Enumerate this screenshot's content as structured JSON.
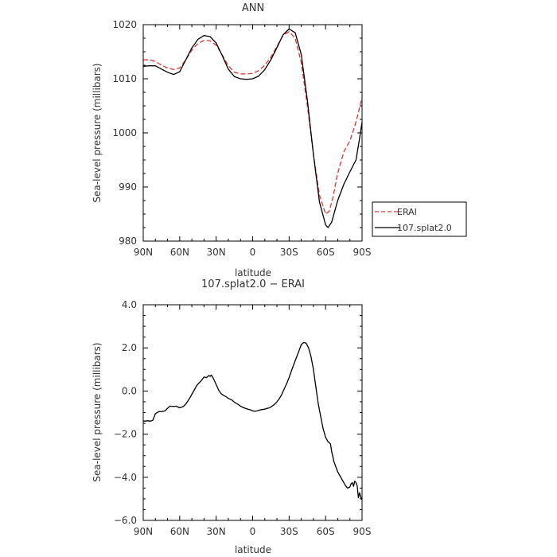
{
  "chart_data": [
    {
      "type": "line",
      "title": "ANN",
      "xlabel": "latitude",
      "ylabel": "Sea-level pressure (millibars)",
      "xlim": [
        90,
        -90
      ],
      "ylim": [
        980,
        1020
      ],
      "x_tick_values": [
        90,
        60,
        30,
        0,
        -30,
        -60,
        -90
      ],
      "x_tick_labels": [
        "90N",
        "60N",
        "30N",
        "0",
        "30S",
        "60S",
        "90S"
      ],
      "y_tick_values": [
        980,
        990,
        1000,
        1010,
        1020
      ],
      "y_tick_labels": [
        "980",
        "990",
        "1000",
        "1010",
        "1020"
      ],
      "legend_position": "right",
      "series": [
        {
          "name": "ERAI",
          "color": "#e8302c",
          "dash": "dashed",
          "x": [
            90,
            85,
            80,
            75,
            70,
            65,
            60,
            55,
            50,
            45,
            40,
            35,
            30,
            25,
            20,
            15,
            10,
            5,
            0,
            -5,
            -10,
            -15,
            -20,
            -25,
            -30,
            -35,
            -40,
            -45,
            -50,
            -55,
            -60,
            -63,
            -66,
            -70,
            -75,
            -80,
            -85,
            -90
          ],
          "y": [
            1013.5,
            1013.5,
            1013.2,
            1012.5,
            1012.0,
            1011.7,
            1012.0,
            1013.5,
            1015.3,
            1016.5,
            1017.1,
            1017.0,
            1016.2,
            1014.4,
            1012.4,
            1011.2,
            1010.9,
            1010.9,
            1011.0,
            1011.5,
            1012.5,
            1014.0,
            1016.0,
            1018.0,
            1018.7,
            1017.5,
            1013.0,
            1005.0,
            996.0,
            988.5,
            985.0,
            985.5,
            988.0,
            992.5,
            996.5,
            998.5,
            1002.0,
            1006.5
          ]
        },
        {
          "name": "107.splat2.0",
          "color": "#000000",
          "dash": "solid",
          "x": [
            90,
            85,
            80,
            75,
            70,
            65,
            60,
            55,
            50,
            45,
            40,
            35,
            30,
            25,
            20,
            15,
            10,
            5,
            0,
            -5,
            -10,
            -15,
            -20,
            -25,
            -30,
            -35,
            -40,
            -45,
            -50,
            -55,
            -60,
            -62,
            -65,
            -70,
            -75,
            -80,
            -85,
            -88,
            -90
          ],
          "y": [
            1012.3,
            1012.4,
            1012.4,
            1011.8,
            1011.2,
            1010.8,
            1011.3,
            1013.5,
            1015.7,
            1017.3,
            1018.0,
            1017.8,
            1016.6,
            1014.3,
            1011.8,
            1010.4,
            1010.0,
            1009.9,
            1010.0,
            1010.5,
            1011.7,
            1013.5,
            1015.8,
            1018.1,
            1019.2,
            1018.5,
            1014.5,
            1006.0,
            996.0,
            987.2,
            983.0,
            982.5,
            983.5,
            987.5,
            990.5,
            992.8,
            995.0,
            999.0,
            1002.0
          ]
        }
      ]
    },
    {
      "type": "line",
      "title": "107.splat2.0 − ERAI",
      "xlabel": "latitude",
      "ylabel": "Sea-level pressure (millibars)",
      "xlim": [
        90,
        -90
      ],
      "ylim": [
        -6.0,
        4.0
      ],
      "x_tick_values": [
        90,
        60,
        30,
        0,
        -30,
        -60,
        -90
      ],
      "x_tick_labels": [
        "90N",
        "60N",
        "30N",
        "0",
        "30S",
        "60S",
        "90S"
      ],
      "y_tick_values": [
        -6.0,
        -4.0,
        -2.0,
        0.0,
        2.0,
        4.0
      ],
      "y_tick_labels": [
        "−6.0",
        "−4.0",
        "−2.0",
        "0.0",
        "2.0",
        "4.0"
      ],
      "series": [
        {
          "color": "#000000",
          "dash": "solid",
          "x": [
            90,
            86,
            84,
            82,
            80,
            77,
            75,
            72,
            70,
            68,
            65,
            63,
            60,
            57,
            55,
            52,
            50,
            48,
            46,
            44,
            42,
            40,
            38,
            36,
            35,
            34,
            32,
            30,
            28,
            26,
            24,
            22,
            20,
            17,
            15,
            12,
            10,
            8,
            6,
            4,
            2,
            0,
            -2,
            -4,
            -6,
            -8,
            -10,
            -12,
            -14,
            -16,
            -18,
            -20,
            -22,
            -24,
            -26,
            -28,
            -30,
            -32,
            -34,
            -36,
            -38,
            -40,
            -42,
            -44,
            -46,
            -48,
            -50,
            -52,
            -54,
            -56,
            -58,
            -60,
            -62,
            -64,
            -65,
            -67,
            -70,
            -72,
            -74,
            -76,
            -78,
            -80,
            -81,
            -82,
            -83,
            -84,
            -85,
            -86,
            -87,
            -88,
            -89,
            -90
          ],
          "y": [
            -1.4,
            -1.38,
            -1.4,
            -1.35,
            -1.05,
            -0.95,
            -0.96,
            -0.92,
            -0.8,
            -0.7,
            -0.72,
            -0.7,
            -0.78,
            -0.72,
            -0.6,
            -0.35,
            -0.15,
            0.05,
            0.25,
            0.38,
            0.5,
            0.65,
            0.62,
            0.72,
            0.68,
            0.74,
            0.55,
            0.3,
            0.05,
            -0.12,
            -0.2,
            -0.26,
            -0.34,
            -0.42,
            -0.52,
            -0.62,
            -0.7,
            -0.76,
            -0.8,
            -0.84,
            -0.87,
            -0.92,
            -0.94,
            -0.92,
            -0.88,
            -0.86,
            -0.84,
            -0.8,
            -0.78,
            -0.7,
            -0.62,
            -0.5,
            -0.35,
            -0.15,
            0.1,
            0.35,
            0.62,
            0.95,
            1.25,
            1.55,
            1.85,
            2.15,
            2.25,
            2.22,
            2.0,
            1.6,
            1.0,
            0.2,
            -0.6,
            -1.2,
            -1.75,
            -2.15,
            -2.35,
            -2.45,
            -2.8,
            -3.3,
            -3.75,
            -3.95,
            -4.15,
            -4.35,
            -4.5,
            -4.45,
            -4.3,
            -4.25,
            -4.42,
            -4.18,
            -4.25,
            -4.4,
            -4.95,
            -4.72,
            -4.92,
            -5.05
          ]
        }
      ]
    }
  ]
}
